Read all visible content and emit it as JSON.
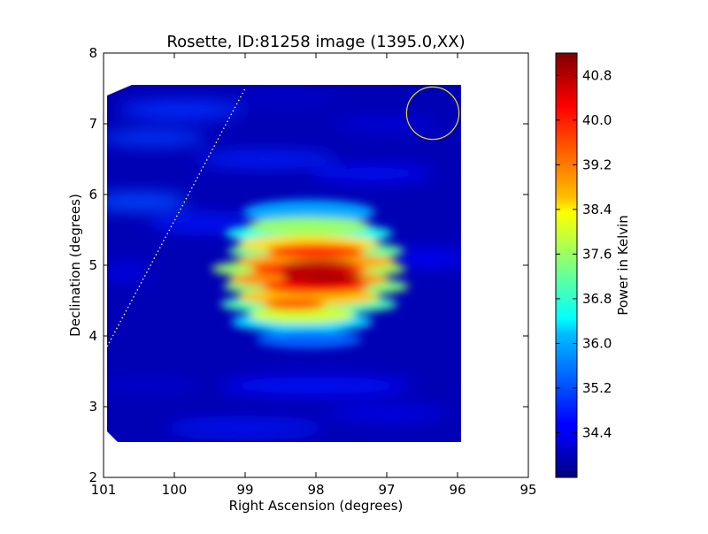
{
  "chart_data": {
    "type": "heatmap",
    "title": "Rosette, ID:81258 image (1395.0,XX)",
    "xlabel": "Right Ascension (degrees)",
    "ylabel": "Declination (degrees)",
    "xlim": [
      101,
      95
    ],
    "ylim": [
      2,
      8
    ],
    "x_ticks": [
      "101",
      "100",
      "99",
      "98",
      "97",
      "96",
      "95"
    ],
    "y_ticks": [
      "2",
      "3",
      "4",
      "5",
      "6",
      "7",
      "8"
    ],
    "colorbar": {
      "label": "Power in Kelvin",
      "min": 33.6,
      "max": 41.2,
      "ticks": [
        "34.4",
        "35.2",
        "36.0",
        "36.8",
        "37.6",
        "38.4",
        "39.2",
        "40.0",
        "40.8"
      ],
      "colormap": "jet"
    },
    "image_extent": {
      "ra_min": 95.95,
      "ra_max": 100.95,
      "dec_min": 2.5,
      "dec_max": 7.55
    },
    "peak": {
      "ra": 98.1,
      "dec": 4.9,
      "value": 41.0
    },
    "beam_circle": {
      "ra": 96.35,
      "dec": 7.15,
      "radius_deg": 0.37,
      "color": "#e0e020"
    },
    "dotted_line": {
      "from": [
        100.95,
        3.85
      ],
      "to": [
        99.0,
        7.5
      ],
      "color": "#e8e8a0"
    },
    "background_level": 34.0
  }
}
